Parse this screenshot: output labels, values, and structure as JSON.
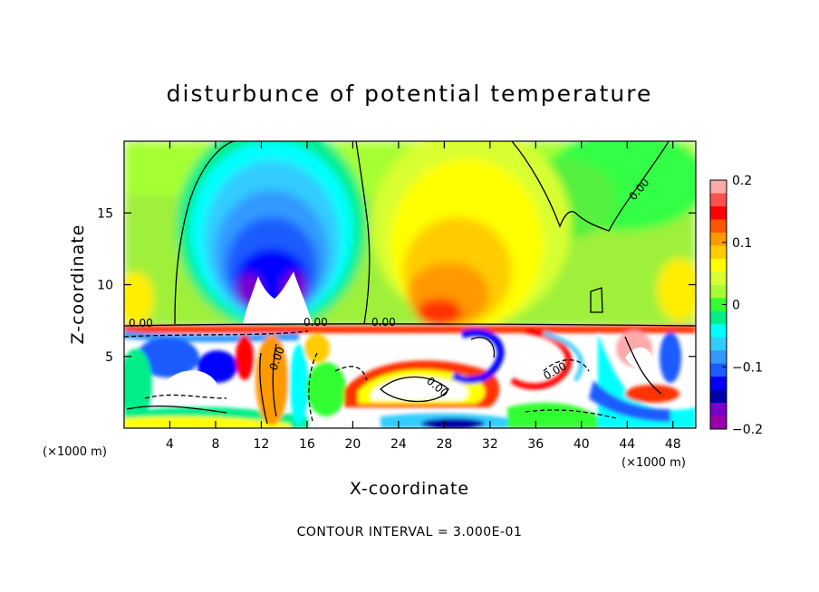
{
  "chart_data": {
    "type": "heatmap",
    "title": "disturbunce of potential temperature",
    "xlabel": "X-coordinate",
    "ylabel": "Z-coordinate",
    "x_unit": "(×1000 m)",
    "z_unit": "(×1000 m)",
    "xlim": [
      0,
      50
    ],
    "ylim": [
      0,
      20
    ],
    "x_ticks": [
      4,
      8,
      12,
      16,
      20,
      24,
      28,
      32,
      36,
      40,
      44,
      48
    ],
    "y_ticks": [
      5,
      10,
      15
    ],
    "colorbar": {
      "range": [
        -0.2,
        0.2
      ],
      "ticks": [
        "0.2",
        "0.1",
        "0",
        "−0.1",
        "−0.2"
      ],
      "colors": [
        "#ffaaaa",
        "#ff5050",
        "#ff0000",
        "#ff5500",
        "#ff9900",
        "#ffcc00",
        "#ffff00",
        "#d8ff33",
        "#a6ff33",
        "#33ff33",
        "#00ee88",
        "#00ffff",
        "#33ccff",
        "#3399ff",
        "#1a5cff",
        "#0000ff",
        "#0000aa",
        "#7700cc",
        "#9900aa"
      ]
    },
    "contour_labels": [
      "0.00",
      "0.00",
      "0.00",
      "0.00",
      "0.00",
      "0.00",
      "0.00"
    ],
    "contour_interval": "CONTOUR INTERVAL = 3.000E-01",
    "grid": false
  }
}
